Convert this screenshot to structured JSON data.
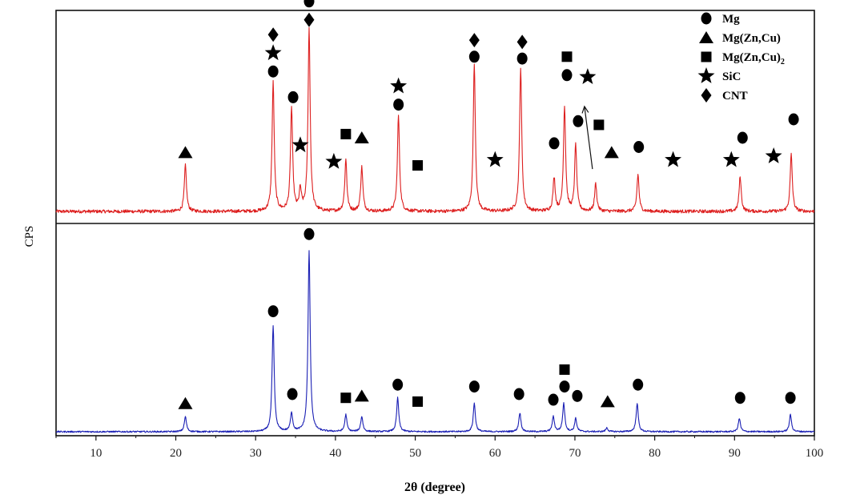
{
  "chart_data": {
    "type": "line",
    "xlabel": "2θ (degree)",
    "ylabel": "CPS",
    "xlim": [
      5,
      100
    ],
    "x_ticks": [
      10,
      20,
      30,
      40,
      50,
      60,
      70,
      80,
      90,
      100
    ],
    "grid": false,
    "legend_position": "top-right",
    "legend": [
      {
        "marker": "circle",
        "label": "Mg"
      },
      {
        "marker": "triangle",
        "label": "Mg(Zn,Cu)"
      },
      {
        "marker": "square",
        "label": "Mg(Zn,Cu)",
        "subscript": "2"
      },
      {
        "marker": "star",
        "label": "SiC"
      },
      {
        "marker": "diamond",
        "label": "CNT"
      }
    ],
    "series": [
      {
        "color": "#dd1f1f",
        "peaks": [
          {
            "x": 21.2,
            "h": 0.25
          },
          {
            "x": 32.2,
            "h": 0.7
          },
          {
            "x": 34.5,
            "h": 0.56
          },
          {
            "x": 35.6,
            "h": 0.11
          },
          {
            "x": 36.7,
            "h": 0.99
          },
          {
            "x": 41.3,
            "h": 0.28
          },
          {
            "x": 43.3,
            "h": 0.24
          },
          {
            "x": 47.9,
            "h": 0.52
          },
          {
            "x": 57.4,
            "h": 0.8
          },
          {
            "x": 63.2,
            "h": 0.78
          },
          {
            "x": 67.4,
            "h": 0.18
          },
          {
            "x": 68.7,
            "h": 0.57
          },
          {
            "x": 70.1,
            "h": 0.36
          },
          {
            "x": 72.6,
            "h": 0.15
          },
          {
            "x": 77.9,
            "h": 0.2
          },
          {
            "x": 90.7,
            "h": 0.19
          },
          {
            "x": 97.1,
            "h": 0.31
          }
        ],
        "markers": [
          {
            "shape": "triangle",
            "x": 21.2,
            "y": 0.32
          },
          {
            "shape": "circle",
            "x": 32.2,
            "y": 0.76
          },
          {
            "shape": "star",
            "x": 32.2,
            "y": 0.86
          },
          {
            "shape": "diamond",
            "x": 32.2,
            "y": 0.96
          },
          {
            "shape": "circle",
            "x": 34.7,
            "y": 0.62
          },
          {
            "shape": "star",
            "x": 35.6,
            "y": 0.36
          },
          {
            "shape": "circle",
            "x": 36.7,
            "y": 1.14
          },
          {
            "shape": "diamond",
            "x": 36.7,
            "y": 1.04
          },
          {
            "shape": "star",
            "x": 39.8,
            "y": 0.27
          },
          {
            "shape": "square",
            "x": 41.3,
            "y": 0.42
          },
          {
            "shape": "triangle",
            "x": 43.3,
            "y": 0.4
          },
          {
            "shape": "star",
            "x": 47.9,
            "y": 0.68
          },
          {
            "shape": "circle",
            "x": 47.9,
            "y": 0.58
          },
          {
            "shape": "square",
            "x": 50.3,
            "y": 0.25
          },
          {
            "shape": "diamond",
            "x": 57.4,
            "y": 0.93
          },
          {
            "shape": "circle",
            "x": 57.4,
            "y": 0.84
          },
          {
            "shape": "star",
            "x": 60.0,
            "y": 0.28
          },
          {
            "shape": "diamond",
            "x": 63.4,
            "y": 0.92
          },
          {
            "shape": "circle",
            "x": 63.4,
            "y": 0.83
          },
          {
            "shape": "circle",
            "x": 67.4,
            "y": 0.37
          },
          {
            "shape": "square",
            "x": 69.0,
            "y": 0.84
          },
          {
            "shape": "circle",
            "x": 69.0,
            "y": 0.74
          },
          {
            "shape": "circle",
            "x": 70.4,
            "y": 0.49
          },
          {
            "shape": "star",
            "x": 71.6,
            "y": 0.73
          },
          {
            "shape": "square",
            "x": 73.0,
            "y": 0.47
          },
          {
            "shape": "triangle",
            "x": 74.6,
            "y": 0.32
          },
          {
            "shape": "circle",
            "x": 78.0,
            "y": 0.35
          },
          {
            "shape": "star",
            "x": 82.3,
            "y": 0.28
          },
          {
            "shape": "star",
            "x": 89.6,
            "y": 0.28
          },
          {
            "shape": "circle",
            "x": 91.0,
            "y": 0.4
          },
          {
            "shape": "star",
            "x": 94.9,
            "y": 0.3
          },
          {
            "shape": "circle",
            "x": 97.4,
            "y": 0.5
          }
        ],
        "arrow": {
          "from_x": 72.2,
          "to_x": 71.2,
          "from_y": 0.23,
          "to_y": 0.57
        }
      },
      {
        "color": "#1a1fb4",
        "peaks": [
          {
            "x": 21.2,
            "h": 0.08
          },
          {
            "x": 32.2,
            "h": 0.56
          },
          {
            "x": 34.5,
            "h": 0.1
          },
          {
            "x": 36.7,
            "h": 0.96
          },
          {
            "x": 41.3,
            "h": 0.09
          },
          {
            "x": 43.3,
            "h": 0.08
          },
          {
            "x": 47.8,
            "h": 0.18
          },
          {
            "x": 57.4,
            "h": 0.15
          },
          {
            "x": 63.1,
            "h": 0.1
          },
          {
            "x": 67.3,
            "h": 0.08
          },
          {
            "x": 68.6,
            "h": 0.15
          },
          {
            "x": 70.1,
            "h": 0.07
          },
          {
            "x": 74.0,
            "h": 0.02
          },
          {
            "x": 77.8,
            "h": 0.15
          },
          {
            "x": 90.6,
            "h": 0.07
          },
          {
            "x": 97.0,
            "h": 0.09
          }
        ],
        "markers": [
          {
            "shape": "triangle",
            "x": 21.2,
            "y": 0.15
          },
          {
            "shape": "circle",
            "x": 32.2,
            "y": 0.64
          },
          {
            "shape": "circle",
            "x": 34.6,
            "y": 0.2
          },
          {
            "shape": "circle",
            "x": 36.7,
            "y": 1.05
          },
          {
            "shape": "square",
            "x": 41.3,
            "y": 0.18
          },
          {
            "shape": "triangle",
            "x": 43.3,
            "y": 0.19
          },
          {
            "shape": "circle",
            "x": 47.8,
            "y": 0.25
          },
          {
            "shape": "square",
            "x": 50.3,
            "y": 0.16
          },
          {
            "shape": "circle",
            "x": 57.4,
            "y": 0.24
          },
          {
            "shape": "circle",
            "x": 63.0,
            "y": 0.2
          },
          {
            "shape": "circle",
            "x": 67.3,
            "y": 0.17
          },
          {
            "shape": "square",
            "x": 68.7,
            "y": 0.33
          },
          {
            "shape": "circle",
            "x": 68.7,
            "y": 0.24
          },
          {
            "shape": "circle",
            "x": 70.3,
            "y": 0.19
          },
          {
            "shape": "triangle",
            "x": 74.1,
            "y": 0.16
          },
          {
            "shape": "circle",
            "x": 77.9,
            "y": 0.25
          },
          {
            "shape": "circle",
            "x": 90.7,
            "y": 0.18
          },
          {
            "shape": "circle",
            "x": 97.0,
            "y": 0.18
          }
        ]
      }
    ]
  }
}
